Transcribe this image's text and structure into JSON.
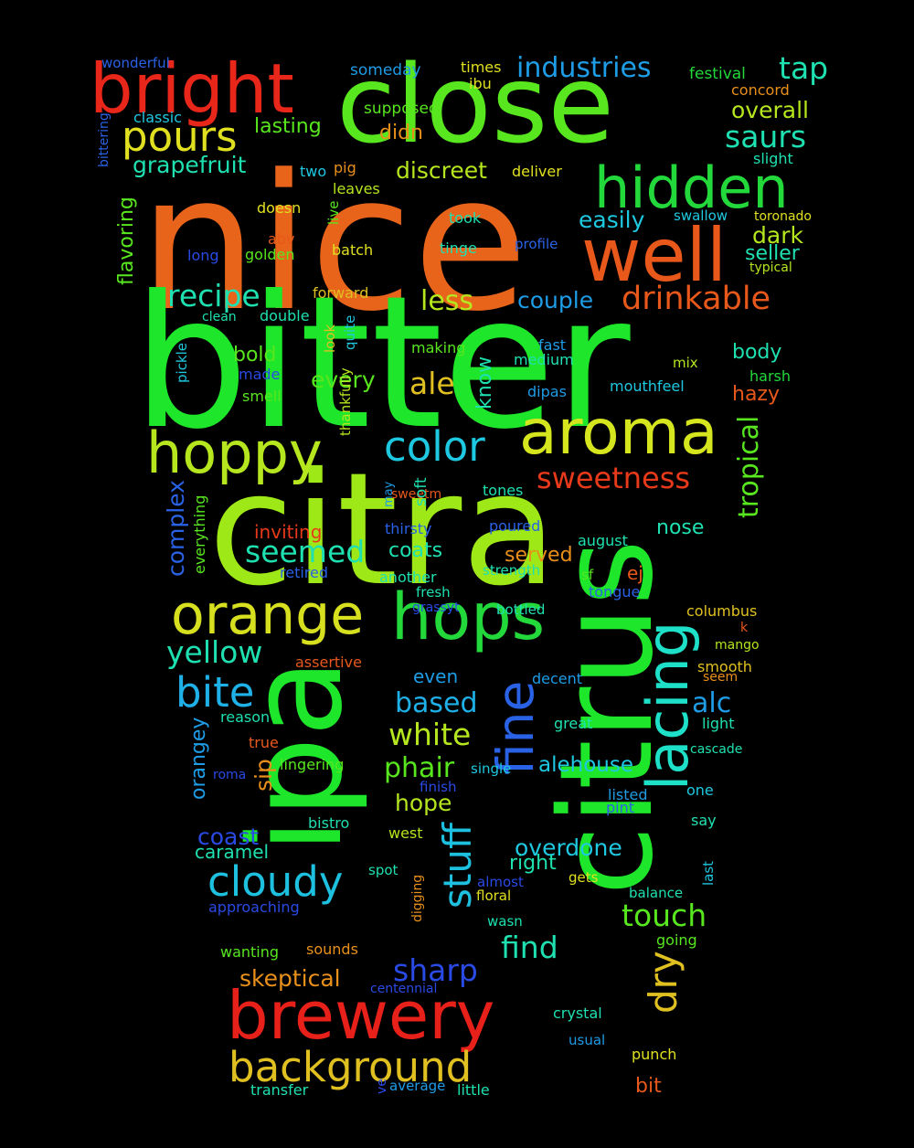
{
  "words": [
    {
      "text": "nice",
      "color": "#e8641a",
      "orientation": "horizontal"
    },
    {
      "text": "bitter",
      "color": "#1ee62a",
      "orientation": "horizontal"
    },
    {
      "text": "citra",
      "color": "#9fe818",
      "orientation": "horizontal"
    },
    {
      "text": "ipa",
      "color": "#1ee62a",
      "orientation": "vertical"
    },
    {
      "text": "citrus",
      "color": "#1ee62a",
      "orientation": "vertical"
    },
    {
      "text": "close",
      "color": "#58e61e",
      "orientation": "horizontal"
    },
    {
      "text": "bright",
      "color": "#e8261a",
      "orientation": "horizontal"
    },
    {
      "text": "well",
      "color": "#e8581a",
      "orientation": "horizontal"
    },
    {
      "text": "aroma",
      "color": "#d6e61e",
      "orientation": "horizontal"
    },
    {
      "text": "hoppy",
      "color": "#b6e61e",
      "orientation": "horizontal"
    },
    {
      "text": "hops",
      "color": "#22d83a",
      "orientation": "horizontal"
    },
    {
      "text": "orange",
      "color": "#d6e01e",
      "orientation": "horizontal"
    },
    {
      "text": "brewery",
      "color": "#e8201a",
      "orientation": "horizontal"
    },
    {
      "text": "lacing",
      "color": "#1ee0c8",
      "orientation": "vertical"
    },
    {
      "text": "fine",
      "color": "#2a62e6",
      "orientation": "vertical"
    },
    {
      "text": "hidden",
      "color": "#22d83a",
      "orientation": "horizontal"
    },
    {
      "text": "background",
      "color": "#e0c020",
      "orientation": "horizontal"
    },
    {
      "text": "color",
      "color": "#1ec8e0",
      "orientation": "horizontal"
    },
    {
      "text": "pours",
      "color": "#e0e020",
      "orientation": "horizontal"
    },
    {
      "text": "cloudy",
      "color": "#1ec0e0",
      "orientation": "horizontal"
    },
    {
      "text": "bite",
      "color": "#1eb0e6",
      "orientation": "horizontal"
    },
    {
      "text": "stuff",
      "color": "#1ec0e0",
      "orientation": "vertical"
    },
    {
      "text": "dry",
      "color": "#e0c020",
      "orientation": "vertical"
    },
    {
      "text": "sweetness",
      "color": "#e83a1a",
      "orientation": "horizontal"
    },
    {
      "text": "drinkable",
      "color": "#e8581a",
      "orientation": "horizontal"
    },
    {
      "text": "recipe",
      "color": "#1ee0b0",
      "orientation": "horizontal"
    },
    {
      "text": "seemed",
      "color": "#1ee0b0",
      "orientation": "horizontal"
    },
    {
      "text": "yellow",
      "color": "#1ee0b0",
      "orientation": "horizontal"
    },
    {
      "text": "industries",
      "color": "#1e9ce6",
      "orientation": "horizontal"
    },
    {
      "text": "tap",
      "color": "#1ee0b0",
      "orientation": "horizontal"
    },
    {
      "text": "saurs",
      "color": "#1ee0b0",
      "orientation": "horizontal"
    },
    {
      "text": "touch",
      "color": "#58e61e",
      "orientation": "horizontal"
    },
    {
      "text": "tropical",
      "color": "#58e61e",
      "orientation": "vertical"
    },
    {
      "text": "white",
      "color": "#b6e61e",
      "orientation": "horizontal"
    },
    {
      "text": "sharp",
      "color": "#2a4ae6",
      "orientation": "horizontal"
    },
    {
      "text": "find",
      "color": "#1ee0b0",
      "orientation": "horizontal"
    },
    {
      "text": "phair",
      "color": "#58e61e",
      "orientation": "horizontal"
    },
    {
      "text": "based",
      "color": "#1eb0e6",
      "orientation": "horizontal"
    },
    {
      "text": "alc",
      "color": "#1e9ce6",
      "orientation": "horizontal"
    },
    {
      "text": "ale",
      "color": "#e0c020",
      "orientation": "horizontal"
    },
    {
      "text": "less",
      "color": "#b6e61e",
      "orientation": "horizontal"
    },
    {
      "text": "every",
      "color": "#58e61e",
      "orientation": "horizontal"
    },
    {
      "text": "easily",
      "color": "#1ec8e0",
      "orientation": "horizontal"
    },
    {
      "text": "overall",
      "color": "#b6e61e",
      "orientation": "horizontal"
    },
    {
      "text": "dark",
      "color": "#b6e61e",
      "orientation": "horizontal"
    },
    {
      "text": "grapefruit",
      "color": "#1ee0b0",
      "orientation": "horizontal"
    },
    {
      "text": "discreet",
      "color": "#b6e61e",
      "orientation": "horizontal"
    },
    {
      "text": "couple",
      "color": "#1e9ce6",
      "orientation": "horizontal"
    },
    {
      "text": "hope",
      "color": "#b6e61e",
      "orientation": "horizontal"
    },
    {
      "text": "overdone",
      "color": "#1ec8e0",
      "orientation": "horizontal"
    },
    {
      "text": "skeptical",
      "color": "#e8901a",
      "orientation": "horizontal"
    },
    {
      "text": "complex",
      "color": "#2a62e6",
      "orientation": "vertical"
    },
    {
      "text": "orangey",
      "color": "#1e9ce6",
      "orientation": "vertical"
    },
    {
      "text": "sip",
      "color": "#e8901a",
      "orientation": "vertical"
    },
    {
      "text": "know",
      "color": "#1ee0b0",
      "orientation": "vertical"
    },
    {
      "text": "coast",
      "color": "#2a4ae6",
      "orientation": "horizontal"
    },
    {
      "text": "alehouse",
      "color": "#1ec8e0",
      "orientation": "horizontal"
    },
    {
      "text": "body",
      "color": "#1ee0b0",
      "orientation": "horizontal"
    },
    {
      "text": "seller",
      "color": "#1ee0b0",
      "orientation": "horizontal"
    },
    {
      "text": "hazy",
      "color": "#e8581a",
      "orientation": "horizontal"
    },
    {
      "text": "nose",
      "color": "#1ee0b0",
      "orientation": "horizontal"
    },
    {
      "text": "coats",
      "color": "#1ee0b0",
      "orientation": "horizontal"
    },
    {
      "text": "served",
      "color": "#e8901a",
      "orientation": "horizontal"
    },
    {
      "text": "bold",
      "color": "#58e61e",
      "orientation": "horizontal"
    },
    {
      "text": "lasting",
      "color": "#58e61e",
      "orientation": "horizontal"
    },
    {
      "text": "caramel",
      "color": "#1ee0b0",
      "orientation": "horizontal"
    },
    {
      "text": "right",
      "color": "#1ee0b0",
      "orientation": "horizontal"
    },
    {
      "text": "bit",
      "color": "#e8581a",
      "orientation": "horizontal"
    },
    {
      "text": "flavoring",
      "color": "#58e61e",
      "orientation": "vertical"
    },
    {
      "text": "didn",
      "color": "#e8901a",
      "orientation": "horizontal"
    },
    {
      "text": "even",
      "color": "#1e9ce6",
      "orientation": "horizontal"
    },
    {
      "text": "inviting",
      "color": "#e83a1a",
      "orientation": "horizontal"
    },
    {
      "text": "ej",
      "color": "#e8581a",
      "orientation": "horizontal"
    },
    {
      "text": "wonderful",
      "color": "#2a62e6",
      "orientation": "horizontal"
    },
    {
      "text": "someday",
      "color": "#1e9ce6",
      "orientation": "horizontal"
    },
    {
      "text": "times",
      "color": "#e0e020",
      "orientation": "horizontal"
    },
    {
      "text": "ibu",
      "color": "#e0e020",
      "orientation": "horizontal"
    },
    {
      "text": "festival",
      "color": "#22d83a",
      "orientation": "horizontal"
    },
    {
      "text": "concord",
      "color": "#e8901a",
      "orientation": "horizontal"
    },
    {
      "text": "classic",
      "color": "#1ec8e0",
      "orientation": "horizontal"
    },
    {
      "text": "supposed",
      "color": "#58e61e",
      "orientation": "horizontal"
    },
    {
      "text": "bittering",
      "color": "#2a62e6",
      "orientation": "vertical"
    },
    {
      "text": "slight",
      "color": "#1ee0b0",
      "orientation": "horizontal"
    },
    {
      "text": "two",
      "color": "#1ec8e0",
      "orientation": "horizontal"
    },
    {
      "text": "pig",
      "color": "#e8901a",
      "orientation": "horizontal"
    },
    {
      "text": "deliver",
      "color": "#e0e020",
      "orientation": "horizontal"
    },
    {
      "text": "leaves",
      "color": "#b6e61e",
      "orientation": "horizontal"
    },
    {
      "text": "doesn",
      "color": "#e0e020",
      "orientation": "horizontal"
    },
    {
      "text": "live",
      "color": "#58e61e",
      "orientation": "vertical"
    },
    {
      "text": "took",
      "color": "#1ee0b0",
      "orientation": "horizontal"
    },
    {
      "text": "swallow",
      "color": "#1ec8e0",
      "orientation": "horizontal"
    },
    {
      "text": "toronado",
      "color": "#e0e020",
      "orientation": "horizontal"
    },
    {
      "text": "abv",
      "color": "#e8581a",
      "orientation": "horizontal"
    },
    {
      "text": "golden",
      "color": "#58e61e",
      "orientation": "horizontal"
    },
    {
      "text": "long",
      "color": "#2a4ae6",
      "orientation": "horizontal"
    },
    {
      "text": "batch",
      "color": "#e0e020",
      "orientation": "horizontal"
    },
    {
      "text": "tinge",
      "color": "#1ee0b0",
      "orientation": "horizontal"
    },
    {
      "text": "profile",
      "color": "#2a62e6",
      "orientation": "horizontal"
    },
    {
      "text": "typical",
      "color": "#b6e61e",
      "orientation": "horizontal"
    },
    {
      "text": "forward",
      "color": "#e0c020",
      "orientation": "horizontal"
    },
    {
      "text": "clean",
      "color": "#1ee0b0",
      "orientation": "horizontal"
    },
    {
      "text": "double",
      "color": "#1ee0b0",
      "orientation": "horizontal"
    },
    {
      "text": "look",
      "color": "#e0c020",
      "orientation": "vertical"
    },
    {
      "text": "quite",
      "color": "#1ec8e0",
      "orientation": "vertical"
    },
    {
      "text": "making",
      "color": "#58e61e",
      "orientation": "horizontal"
    },
    {
      "text": "fast",
      "color": "#1e9ce6",
      "orientation": "horizontal"
    },
    {
      "text": "medium",
      "color": "#1ee0b0",
      "orientation": "horizontal"
    },
    {
      "text": "mix",
      "color": "#b6e61e",
      "orientation": "horizontal"
    },
    {
      "text": "pickle",
      "color": "#1ec8e0",
      "orientation": "vertical"
    },
    {
      "text": "made",
      "color": "#2a4ae6",
      "orientation": "horizontal"
    },
    {
      "text": "smell",
      "color": "#58e61e",
      "orientation": "horizontal"
    },
    {
      "text": "thankfully",
      "color": "#b6e61e",
      "orientation": "vertical"
    },
    {
      "text": "mouthfeel",
      "color": "#1ec8e0",
      "orientation": "horizontal"
    },
    {
      "text": "harsh",
      "color": "#22d83a",
      "orientation": "horizontal"
    },
    {
      "text": "dipas",
      "color": "#1e9ce6",
      "orientation": "horizontal"
    },
    {
      "text": "sweetm",
      "color": "#e8581a",
      "orientation": "horizontal"
    },
    {
      "text": "may",
      "color": "#1e9ce6",
      "orientation": "vertical"
    },
    {
      "text": "soft",
      "color": "#1ee0b0",
      "orientation": "vertical"
    },
    {
      "text": "tones",
      "color": "#1ee0b0",
      "orientation": "horizontal"
    },
    {
      "text": "everything",
      "color": "#58e61e",
      "orientation": "vertical"
    },
    {
      "text": "thirsty",
      "color": "#2a62e6",
      "orientation": "horizontal"
    },
    {
      "text": "poured",
      "color": "#2a62e6",
      "orientation": "horizontal"
    },
    {
      "text": "august",
      "color": "#1ee0b0",
      "orientation": "horizontal"
    },
    {
      "text": "retired",
      "color": "#2a62e6",
      "orientation": "horizontal"
    },
    {
      "text": "another",
      "color": "#1ee0b0",
      "orientation": "horizontal"
    },
    {
      "text": "strength",
      "color": "#1ee0b0",
      "orientation": "horizontal"
    },
    {
      "text": "sf",
      "color": "#58e61e",
      "orientation": "horizontal"
    },
    {
      "text": "fresh",
      "color": "#1ee0b0",
      "orientation": "horizontal"
    },
    {
      "text": "tongue",
      "color": "#2a62e6",
      "orientation": "horizontal"
    },
    {
      "text": "grassyt",
      "color": "#2a4ae6",
      "orientation": "horizontal"
    },
    {
      "text": "bottled",
      "color": "#1ee0b0",
      "orientation": "horizontal"
    },
    {
      "text": "columbus",
      "color": "#e0c020",
      "orientation": "horizontal"
    },
    {
      "text": "k",
      "color": "#e8581a",
      "orientation": "horizontal"
    },
    {
      "text": "mango",
      "color": "#b6e61e",
      "orientation": "horizontal"
    },
    {
      "text": "assertive",
      "color": "#e8581a",
      "orientation": "horizontal"
    },
    {
      "text": "smooth",
      "color": "#e0c020",
      "orientation": "horizontal"
    },
    {
      "text": "decent",
      "color": "#1e9ce6",
      "orientation": "horizontal"
    },
    {
      "text": "seem",
      "color": "#e8901a",
      "orientation": "horizontal"
    },
    {
      "text": "reason",
      "color": "#1ee0b0",
      "orientation": "horizontal"
    },
    {
      "text": "light",
      "color": "#1ee0b0",
      "orientation": "horizontal"
    },
    {
      "text": "true",
      "color": "#e8581a",
      "orientation": "horizontal"
    },
    {
      "text": "great",
      "color": "#1ee0b0",
      "orientation": "horizontal"
    },
    {
      "text": "cascade",
      "color": "#1ee0b0",
      "orientation": "horizontal"
    },
    {
      "text": "lingering",
      "color": "#58e61e",
      "orientation": "horizontal"
    },
    {
      "text": "roma",
      "color": "#2a4ae6",
      "orientation": "horizontal"
    },
    {
      "text": "single",
      "color": "#1ec8e0",
      "orientation": "horizontal"
    },
    {
      "text": "finish",
      "color": "#2a4ae6",
      "orientation": "horizontal"
    },
    {
      "text": "listed",
      "color": "#1e9ce6",
      "orientation": "horizontal"
    },
    {
      "text": "one",
      "color": "#1ec8e0",
      "orientation": "horizontal"
    },
    {
      "text": "pint",
      "color": "#2a62e6",
      "orientation": "horizontal"
    },
    {
      "text": "bistro",
      "color": "#1ee0b0",
      "orientation": "horizontal"
    },
    {
      "text": "west",
      "color": "#b6e61e",
      "orientation": "horizontal"
    },
    {
      "text": "say",
      "color": "#1ee0b0",
      "orientation": "horizontal"
    },
    {
      "text": "spot",
      "color": "#1ee0b0",
      "orientation": "horizontal"
    },
    {
      "text": "digging",
      "color": "#e8901a",
      "orientation": "vertical"
    },
    {
      "text": "almost",
      "color": "#2a4ae6",
      "orientation": "horizontal"
    },
    {
      "text": "gets",
      "color": "#e0e020",
      "orientation": "horizontal"
    },
    {
      "text": "last",
      "color": "#1ec8e0",
      "orientation": "vertical"
    },
    {
      "text": "floral",
      "color": "#e0e020",
      "orientation": "horizontal"
    },
    {
      "text": "balance",
      "color": "#1ee0b0",
      "orientation": "horizontal"
    },
    {
      "text": "approaching",
      "color": "#2a4ae6",
      "orientation": "horizontal"
    },
    {
      "text": "wasn",
      "color": "#1ee0b0",
      "orientation": "horizontal"
    },
    {
      "text": "going",
      "color": "#58e61e",
      "orientation": "horizontal"
    },
    {
      "text": "wanting",
      "color": "#58e61e",
      "orientation": "horizontal"
    },
    {
      "text": "sounds",
      "color": "#e8901a",
      "orientation": "horizontal"
    },
    {
      "text": "centennial",
      "color": "#2a4ae6",
      "orientation": "horizontal"
    },
    {
      "text": "crystal",
      "color": "#1ee0b0",
      "orientation": "horizontal"
    },
    {
      "text": "usual",
      "color": "#1e9ce6",
      "orientation": "horizontal"
    },
    {
      "text": "punch",
      "color": "#e0e020",
      "orientation": "horizontal"
    },
    {
      "text": "transfer",
      "color": "#1ee0b0",
      "orientation": "horizontal"
    },
    {
      "text": "ve",
      "color": "#2a4ae6",
      "orientation": "vertical"
    },
    {
      "text": "average",
      "color": "#1e9ce6",
      "orientation": "horizontal"
    },
    {
      "text": "little",
      "color": "#1ee0b0",
      "orientation": "horizontal"
    }
  ]
}
